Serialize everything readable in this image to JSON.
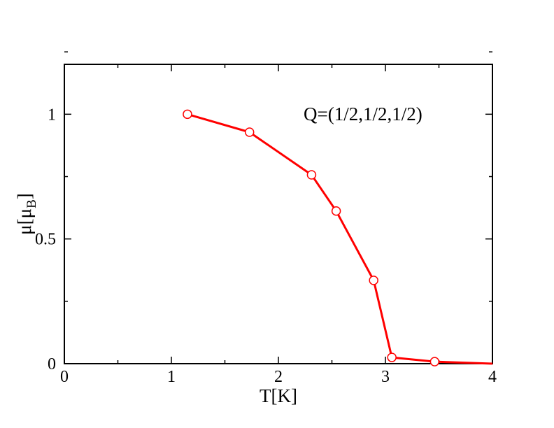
{
  "chart_data": {
    "type": "line",
    "title": "",
    "xlabel": "T[K]",
    "ylabel": {
      "base": "μ[μ",
      "subscript": "B",
      "close": "]"
    },
    "annotation": "Q=(1/2,1/2,1/2)",
    "xlim": [
      0,
      4
    ],
    "ylim": [
      0,
      1.2
    ],
    "xticks": [
      0,
      1,
      2,
      3,
      4
    ],
    "xtick_labels": [
      "0",
      "1",
      "2",
      "3",
      "4"
    ],
    "yticks": [
      0,
      0.5,
      1
    ],
    "ytick_labels": [
      "0",
      "0.5",
      "1"
    ],
    "x_minor_step": 0.5,
    "y_minor_step": 0.25,
    "grid": false,
    "legend": "none",
    "series": [
      {
        "color": "#ff0000",
        "marker": "open-circle",
        "x": [
          1.15,
          1.73,
          2.31,
          2.54,
          2.89,
          3.06,
          3.46,
          4.0
        ],
        "y": [
          1.0,
          0.928,
          0.757,
          0.612,
          0.334,
          0.025,
          0.008,
          0.0
        ],
        "markers_at": [
          0,
          1,
          2,
          3,
          4,
          5,
          6
        ]
      }
    ]
  }
}
